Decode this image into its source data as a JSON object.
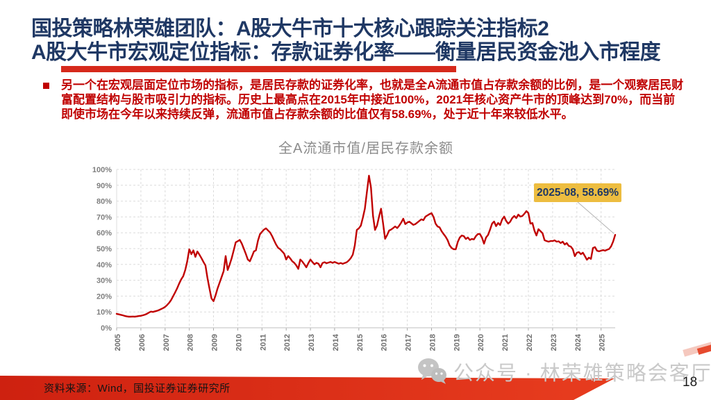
{
  "slide": {
    "title": {
      "line1": "国投策略林荣雄团队：A股大牛市十大核心跟踪关注指标2",
      "line2": "A股大牛市宏观定位指标：存款证券化率——衡量居民资金池入市程度"
    },
    "bullet": {
      "lines": [
        "另一个在宏观层面定位市场的指标，是居民存款的证券化率，也就是全A流通市值占存款余额的比例，是一个观察居民财",
        "富配置结构与股市吸引力的指标。历史上最高点在2015年中接近100%，2021年核心资产牛市的顶峰达到70%，而当前",
        "即使市场在今年以来持续反弹，流通市值占存款余额的比值仅有58.69%，处于近十年来较低水平。"
      ]
    },
    "page_number": "18"
  },
  "chart_data": {
    "type": "line",
    "title": "全A流通市值/居民存款余额",
    "xlabel": "",
    "ylabel": "",
    "ylim": [
      0,
      100
    ],
    "y_tick_labels": [
      "0%",
      "10%",
      "20%",
      "30%",
      "40%",
      "50%",
      "60%",
      "70%",
      "80%",
      "90%",
      "100%"
    ],
    "x_tick_labels": [
      "2005",
      "2006",
      "2007",
      "2008",
      "2009",
      "2010",
      "2011",
      "2012",
      "2013",
      "2014",
      "2015",
      "2016",
      "2017",
      "2018",
      "2019",
      "2020",
      "2021",
      "2022",
      "2023",
      "2024",
      "2025"
    ],
    "grid": "dashed",
    "legend_position": "none",
    "line_color": "#C00000",
    "annotation": {
      "text": "2025-08, 58.69%",
      "x": "2025-08",
      "y": 58.69
    },
    "series": [
      {
        "name": "全A流通市值/居民存款余额",
        "start": "2005-01",
        "freq": "monthly",
        "unit": "%",
        "values": [
          8.8,
          8.5,
          8.2,
          7.9,
          7.5,
          7.2,
          7.0,
          7.0,
          7.1,
          7.0,
          7.2,
          7.4,
          7.6,
          7.9,
          8.3,
          8.8,
          9.6,
          10.2,
          10.0,
          10.4,
          10.7,
          11.2,
          11.8,
          12.4,
          13.2,
          14.4,
          15.8,
          17.6,
          20.0,
          22.4,
          25.0,
          28.0,
          30.6,
          32.6,
          36.5,
          42.0,
          49.6,
          46.5,
          48.9,
          44.8,
          48.2,
          46.2,
          44.0,
          41.6,
          39.4,
          31.4,
          24.8,
          18.5,
          16.8,
          20.4,
          24.8,
          28.5,
          32.1,
          35.8,
          45.3,
          36.5,
          40.0,
          44.0,
          48.9,
          54.0,
          54.7,
          55.5,
          53.2,
          50.0,
          46.7,
          43.1,
          42.0,
          45.0,
          48.2,
          48.9,
          55.0,
          59.1,
          60.6,
          62.0,
          62.8,
          61.5,
          60.2,
          58.0,
          55.2,
          52.6,
          50.5,
          49.6,
          48.2,
          46.8,
          43.1,
          45.3,
          43.8,
          42.0,
          41.0,
          39.4,
          37.2,
          43.1,
          41.8,
          40.1,
          38.2,
          40.9,
          43.1,
          41.5,
          40.1,
          41.0,
          40.5,
          38.2,
          40.9,
          41.4,
          40.8,
          41.2,
          41.6,
          41.0,
          41.6,
          41.0,
          40.5,
          40.9,
          40.4,
          40.9,
          41.4,
          42.5,
          44.0,
          46.2,
          52.0,
          61.8,
          62.8,
          64.5,
          69.5,
          75.2,
          86.0,
          96.1,
          88.5,
          70.8,
          61.8,
          64.5,
          70.2,
          75.2,
          66.0,
          56.2,
          58.5,
          61.4,
          62.0,
          63.0,
          64.0,
          63.0,
          64.5,
          66.5,
          68.9,
          65.5,
          66.5,
          67.0,
          66.0,
          65.0,
          65.5,
          66.5,
          67.5,
          68.5,
          68.0,
          70.2,
          71.0,
          71.8,
          72.4,
          70.0,
          65.8,
          64.0,
          63.4,
          61.0,
          59.2,
          57.5,
          55.3,
          52.0,
          50.4,
          49.6,
          49.6,
          54.2,
          57.0,
          58.3,
          57.9,
          56.1,
          57.0,
          55.5,
          56.1,
          55.8,
          57.9,
          59.2,
          59.2,
          57.0,
          53.1,
          57.0,
          58.6,
          62.0,
          65.8,
          67.1,
          64.2,
          66.2,
          64.9,
          68.4,
          70.2,
          67.5,
          65.8,
          67.0,
          69.3,
          70.6,
          69.3,
          71.5,
          70.2,
          70.6,
          72.0,
          73.7,
          72.4,
          65.8,
          66.2,
          61.4,
          58.3,
          62.3,
          61.0,
          59.7,
          55.3,
          54.8,
          54.4,
          54.8,
          54.8,
          55.2,
          54.4,
          54.6,
          53.5,
          54.4,
          52.6,
          53.5,
          51.7,
          51.3,
          49.6,
          45.2,
          47.4,
          47.8,
          46.5,
          47.4,
          45.2,
          43.0,
          44.3,
          43.5,
          50.4,
          50.9,
          48.7,
          48.3,
          48.7,
          49.1,
          48.7,
          49.3,
          49.8,
          51.5,
          54.5,
          58.69
        ]
      }
    ]
  },
  "watermark": {
    "icon": "wechat-icon",
    "text": "公众号 · 林荣雄策略会客厅"
  },
  "footer": {
    "source": "资料来源：Wind，国投证券证券研究所"
  },
  "colors": {
    "title_navy": "#1F3864",
    "accent_red": "#D6291B",
    "body_red": "#C00000",
    "line_red": "#C00000",
    "annotation_bg": "#EDBD40",
    "annotation_text": "#1F3864",
    "grid_grey": "#DBDBDB",
    "axis_label_grey": "#7F7F7F",
    "chart_title_grey": "#8C8C8C",
    "watermark_grey": "#C9C9C9",
    "footer_band_red": "#DB2B15",
    "footer_text": "#141414"
  }
}
